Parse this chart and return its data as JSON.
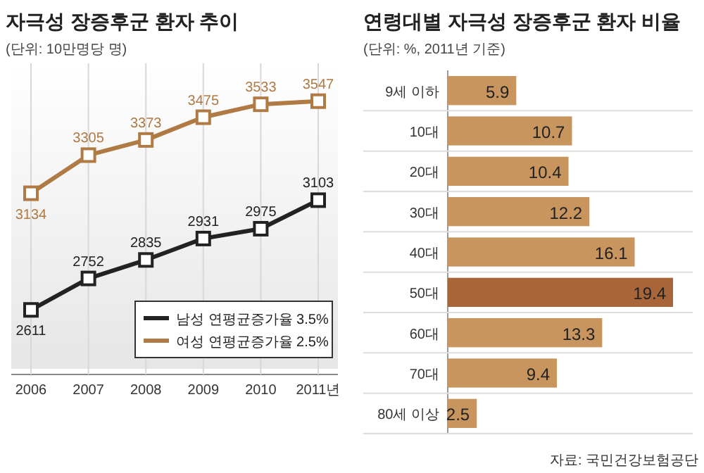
{
  "chart_data": [
    {
      "type": "line",
      "title": "자극성 장증후군 환자 추이",
      "subtitle": "(단위: 10만명당 명)",
      "categories": [
        "2006",
        "2007",
        "2008",
        "2009",
        "2010",
        "2011년"
      ],
      "series": [
        {
          "name": "남성 연평균증가율 3.5%",
          "color": "#222222",
          "values": [
            2611,
            2752,
            2835,
            2931,
            2975,
            3103
          ]
        },
        {
          "name": "여성 연평균증가율 2.5%",
          "color": "#b07a45",
          "values": [
            3134,
            3305,
            3373,
            3475,
            3533,
            3547
          ]
        }
      ],
      "data_labels": true,
      "marker": "square",
      "legend": "bottom right",
      "grid": "x"
    },
    {
      "type": "bar",
      "orientation": "horizontal",
      "title": "연령대별 자극성 장증후군 환자 비율",
      "subtitle": "(단위: %, 2011년 기준)",
      "categories": [
        "9세 이하",
        "10대",
        "20대",
        "30대",
        "40대",
        "50대",
        "60대",
        "70대",
        "80세 이상"
      ],
      "values": [
        5.9,
        10.7,
        10.4,
        12.2,
        16.1,
        19.4,
        13.3,
        9.4,
        2.5
      ],
      "colors": [
        "#c8955f",
        "#c8955f",
        "#c8955f",
        "#c8955f",
        "#c8955f",
        "#a8653a",
        "#c8955f",
        "#c8955f",
        "#c8955f"
      ],
      "data_labels": true,
      "annotations": [
        "자료: 국민건강보험공단"
      ]
    }
  ]
}
